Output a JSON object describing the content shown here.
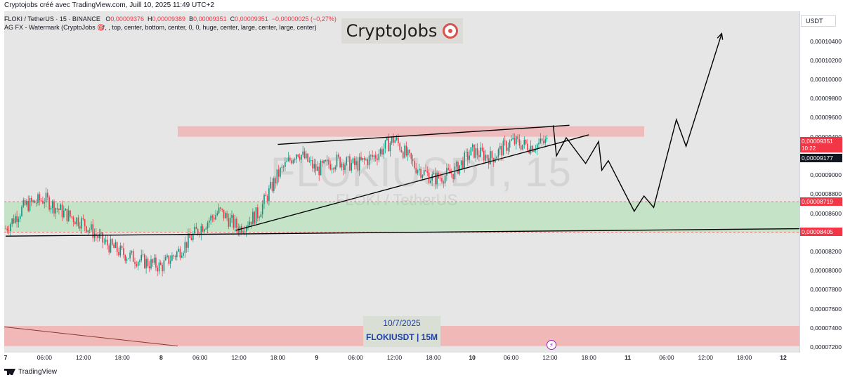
{
  "header": {
    "attribution": "Cryptojobs créé avec TradingView.com, Juill 10, 2025 11:49 UTC+2"
  },
  "legend": {
    "symbol_line": "FLOKI / TetherUS · 15 · BINANCE",
    "o_label": "O",
    "o_value": "0,00009376",
    "h_label": "H",
    "h_value": "0,00009389",
    "l_label": "B",
    "l_value": "0,00009351",
    "c_label": "C",
    "c_value": "0,00009351",
    "change": "−0,00000025 (−0,27%)",
    "indicator_line": "AG FX - Watermark (CryptoJobs 🎯, , top, center, bottom, center, 0, 0, huge, center, large, center, large, center)"
  },
  "watermark": {
    "title": "CryptoJobs",
    "ghost_symbol": "FLOKIUSDT, 15",
    "ghost_name": "FLOKI / TetherUS"
  },
  "date_box": {
    "date": "10/7/2025",
    "subtitle": "FLOKIUSDT | 15M"
  },
  "price_scale": {
    "unit": "USDT",
    "labels": [
      "0,00010400",
      "0,00010200",
      "0,00010000",
      "0,00009800",
      "0,00009600",
      "0,00009400",
      "0,00009000",
      "0,00008800",
      "0,00008600",
      "0,00008200",
      "0,00008000",
      "0,00007800",
      "0,00007600",
      "0,00007400",
      "0,00007200"
    ],
    "current_price": "0,00009351",
    "countdown": "10:22",
    "level_1": "0,00009177",
    "level_2": "0,00008719",
    "level_3": "0,00008405"
  },
  "time_axis": {
    "labels": [
      "7",
      "06:00",
      "12:00",
      "18:00",
      "8",
      "06:00",
      "12:00",
      "18:00",
      "9",
      "06:00",
      "12:00",
      "18:00",
      "10",
      "06:00",
      "12:00",
      "18:00",
      "11",
      "06:00",
      "12:00",
      "18:00",
      "12"
    ]
  },
  "footer": {
    "brand": "TradingView"
  },
  "colors": {
    "up_candle": "#089981",
    "down_candle": "#f23645",
    "resistance_zone": "#f2a6a6",
    "support_zone": "#b7e1b9",
    "bottom_zone": "#f2b3b3",
    "trendline": "#000000"
  },
  "chart_data": {
    "type": "candlestick",
    "symbol": "FLOKI / TetherUS",
    "exchange": "BINANCE",
    "interval": "15",
    "ylim": [
      7.2e-05,
      0.000105
    ],
    "x_start": "Jul 7, 2025 00:00",
    "x_end": "Jul 12, 2025 00:00",
    "price_path": [
      {
        "t": "Jul 7 00:00",
        "price": 8.44e-05
      },
      {
        "t": "Jul 7 03:00",
        "price": 8.68e-05
      },
      {
        "t": "Jul 7 06:00",
        "price": 8.75e-05
      },
      {
        "t": "Jul 7 09:00",
        "price": 8.6e-05
      },
      {
        "t": "Jul 7 12:00",
        "price": 8.5e-05
      },
      {
        "t": "Jul 7 15:00",
        "price": 8.3e-05
      },
      {
        "t": "Jul 7 18:00",
        "price": 8.18e-05
      },
      {
        "t": "Jul 7 21:00",
        "price": 8.1e-05
      },
      {
        "t": "Jul 8 00:00",
        "price": 8.04e-05
      },
      {
        "t": "Jul 8 03:00",
        "price": 8.22e-05
      },
      {
        "t": "Jul 8 06:00",
        "price": 8.45e-05
      },
      {
        "t": "Jul 8 09:00",
        "price": 8.62e-05
      },
      {
        "t": "Jul 8 12:00",
        "price": 8.44e-05
      },
      {
        "t": "Jul 8 15:00",
        "price": 8.6e-05
      },
      {
        "t": "Jul 8 18:00",
        "price": 9e-05
      },
      {
        "t": "Jul 8 21:00",
        "price": 9.25e-05
      },
      {
        "t": "Jul 9 00:00",
        "price": 9.05e-05
      },
      {
        "t": "Jul 9 03:00",
        "price": 9.15e-05
      },
      {
        "t": "Jul 9 06:00",
        "price": 9.1e-05
      },
      {
        "t": "Jul 9 09:00",
        "price": 9.2e-05
      },
      {
        "t": "Jul 9 12:00",
        "price": 9.38e-05
      },
      {
        "t": "Jul 9 15:00",
        "price": 9.1e-05
      },
      {
        "t": "Jul 9 18:00",
        "price": 8.96e-05
      },
      {
        "t": "Jul 9 21:00",
        "price": 9.02e-05
      },
      {
        "t": "Jul 10 00:00",
        "price": 9.25e-05
      },
      {
        "t": "Jul 10 03:00",
        "price": 9.18e-05
      },
      {
        "t": "Jul 10 06:00",
        "price": 9.35e-05
      },
      {
        "t": "Jul 10 09:00",
        "price": 9.3e-05
      },
      {
        "t": "Jul 10 11:45",
        "price": 9.351e-05
      }
    ],
    "zones": [
      {
        "name": "resistance",
        "from": 9.4e-05,
        "to": 9.51e-05
      },
      {
        "name": "support",
        "from": 8.4e-05,
        "to": 8.72e-05
      },
      {
        "name": "lower",
        "from": 7.21e-05,
        "to": 7.42e-05
      }
    ],
    "annotations": [
      {
        "type": "trendline",
        "points": [
          {
            "t": "Jul 8 18:00",
            "price": 9.32e-05
          },
          {
            "t": "Jul 10 15:00",
            "price": 9.52e-05
          }
        ]
      },
      {
        "type": "trendline",
        "points": [
          {
            "t": "Jul 8 11:30",
            "price": 8.42e-05
          },
          {
            "t": "Jul 10 18:00",
            "price": 9.42e-05
          }
        ]
      },
      {
        "type": "trendline",
        "points": [
          {
            "t": "Jul 7 00:00",
            "price": 8.36e-05
          },
          {
            "t": "Jul 12 06:00",
            "price": 8.44e-05
          }
        ]
      },
      {
        "type": "projection",
        "points": [
          {
            "t": "Jul 10 12:30",
            "price": 9.52e-05
          },
          {
            "t": "Jul 10 13:00",
            "price": 9.2e-05
          },
          {
            "t": "Jul 10 14:30",
            "price": 9.39e-05
          },
          {
            "t": "Jul 10 17:30",
            "price": 9.12e-05
          },
          {
            "t": "Jul 10 19:30",
            "price": 9.35e-05
          },
          {
            "t": "Jul 10 20:00",
            "price": 9.05e-05
          },
          {
            "t": "Jul 10 21:00",
            "price": 9.15e-05
          },
          {
            "t": "Jul 11 01:00",
            "price": 8.62e-05
          },
          {
            "t": "Jul 11 02:30",
            "price": 8.78e-05
          },
          {
            "t": "Jul 11 04:00",
            "price": 8.66e-05
          },
          {
            "t": "Jul 11 07:30",
            "price": 9.58e-05
          },
          {
            "t": "Jul 11 09:00",
            "price": 9.3e-05
          },
          {
            "t": "Jul 11 14:30",
            "price": 0.0001048
          }
        ]
      }
    ]
  }
}
